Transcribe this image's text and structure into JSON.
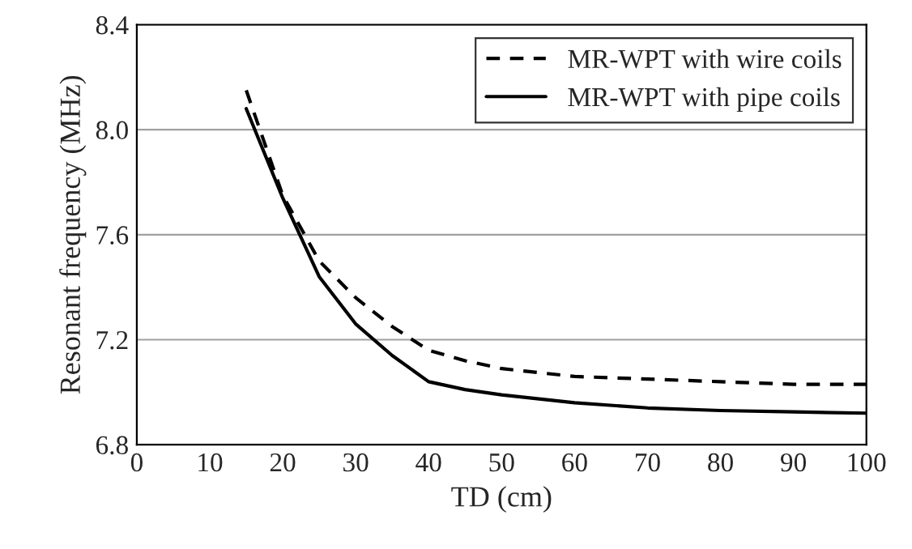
{
  "chart_data": {
    "type": "line",
    "xlabel": "TD (cm)",
    "ylabel": "Resonant frequency (MHz)",
    "xlim": [
      0,
      100
    ],
    "xticks": [
      0,
      10,
      20,
      30,
      40,
      50,
      60,
      70,
      80,
      90,
      100
    ],
    "ylim": [
      6.8,
      8.4
    ],
    "yticks": [
      {
        "value": 6.8,
        "label": "6.8"
      },
      {
        "value": 7.2,
        "label": "7.2"
      },
      {
        "value": 7.6,
        "label": "7.6"
      },
      {
        "value": 8.0,
        "label": "8.0"
      },
      {
        "value": 8.4,
        "label": "8.4"
      }
    ],
    "grid": "y",
    "legend": "top right",
    "marker": "none",
    "series": [
      {
        "name": "MR-WPT with wire coils",
        "color": "#000000",
        "line_style": "dashed",
        "x": [
          15,
          20,
          25,
          30,
          35,
          40,
          45,
          50,
          60,
          70,
          80,
          90,
          100
        ],
        "values": [
          8.15,
          7.75,
          7.5,
          7.36,
          7.25,
          7.16,
          7.12,
          7.09,
          7.06,
          7.05,
          7.04,
          7.03,
          7.03
        ]
      },
      {
        "name": "MR-WPT with pipe coils",
        "color": "#000000",
        "line_style": "solid",
        "x": [
          15,
          20,
          25,
          30,
          35,
          40,
          45,
          50,
          60,
          70,
          80,
          90,
          100
        ],
        "values": [
          8.08,
          7.74,
          7.44,
          7.26,
          7.14,
          7.04,
          7.01,
          6.99,
          6.96,
          6.94,
          6.93,
          6.925,
          6.92
        ]
      }
    ]
  }
}
